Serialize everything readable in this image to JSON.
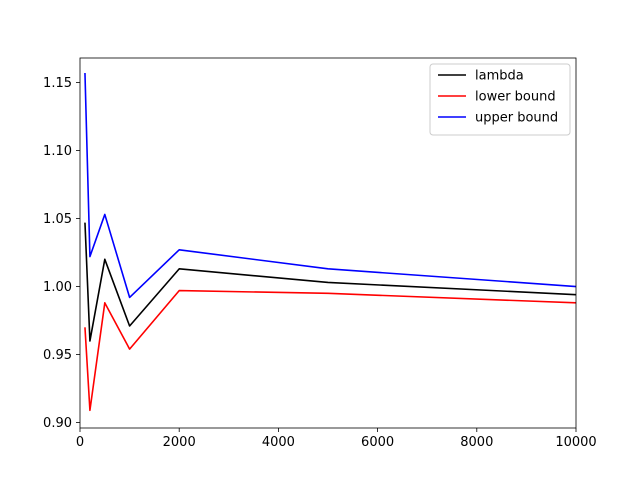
{
  "chart_data": {
    "type": "line",
    "x": [
      100,
      200,
      500,
      1000,
      2000,
      5000,
      10000
    ],
    "series": [
      {
        "name": "lambda",
        "color": "#000000",
        "values": [
          1.047,
          0.96,
          1.02,
          0.971,
          1.013,
          1.003,
          0.994
        ]
      },
      {
        "name": "lower bound",
        "color": "#ff0000",
        "values": [
          0.97,
          0.909,
          0.988,
          0.954,
          0.997,
          0.995,
          0.988
        ]
      },
      {
        "name": "upper bound",
        "color": "#0000ff",
        "values": [
          1.157,
          1.022,
          1.053,
          0.992,
          1.027,
          1.013,
          1.0
        ]
      }
    ],
    "xlim": [
      0,
      10000
    ],
    "ylim": [
      0.896,
      1.168
    ],
    "xticks": [
      0,
      2000,
      4000,
      6000,
      8000,
      10000
    ],
    "yticks": [
      0.9,
      0.95,
      1.0,
      1.05,
      1.1,
      1.15
    ],
    "xtick_labels": [
      "0",
      "2000",
      "4000",
      "6000",
      "8000",
      "10000"
    ],
    "ytick_labels": [
      "0.90",
      "0.95",
      "1.00",
      "1.05",
      "1.10",
      "1.15"
    ],
    "title": "",
    "xlabel": "",
    "ylabel": "",
    "grid": false,
    "legend_position": "top-right"
  }
}
